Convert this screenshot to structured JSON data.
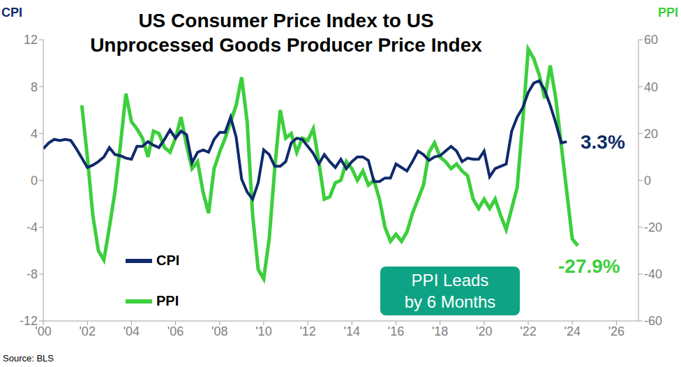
{
  "chart_data": {
    "type": "line",
    "title": "US Consumer Price Index to US\nUnprocessed Goods Producer Price Index",
    "y_label": "CPI",
    "y2_label": "PPI",
    "annotations": [
      "3.3%",
      "-27.9%",
      "PPI Leads\nby 6 Months",
      "Source: BLS"
    ],
    "x": [
      2000,
      2000.25,
      2000.5,
      2000.75,
      2001,
      2001.25,
      2001.5,
      2001.75,
      2002,
      2002.25,
      2002.5,
      2002.75,
      2003,
      2003.25,
      2003.5,
      2003.75,
      2004,
      2004.25,
      2004.5,
      2004.75,
      2005,
      2005.25,
      2005.5,
      2005.75,
      2006,
      2006.25,
      2006.5,
      2006.75,
      2007,
      2007.25,
      2007.5,
      2007.75,
      2008,
      2008.25,
      2008.5,
      2008.75,
      2009,
      2009.25,
      2009.5,
      2009.75,
      2010,
      2010.25,
      2010.5,
      2010.75,
      2011,
      2011.25,
      2011.5,
      2011.75,
      2012,
      2012.25,
      2012.5,
      2012.75,
      2013,
      2013.25,
      2013.5,
      2013.75,
      2014,
      2014.25,
      2014.5,
      2014.75,
      2015,
      2015.25,
      2015.5,
      2015.75,
      2016,
      2016.25,
      2016.5,
      2016.75,
      2017,
      2017.25,
      2017.5,
      2017.75,
      2018,
      2018.25,
      2018.5,
      2018.75,
      2019,
      2019.25,
      2019.5,
      2019.75,
      2020,
      2020.25,
      2020.5,
      2020.75,
      2021,
      2021.25,
      2021.5,
      2021.75,
      2022,
      2022.25,
      2022.5,
      2022.75,
      2023,
      2023.25,
      2023.5,
      2023.75,
      2024,
      2024.25
    ],
    "series": [
      {
        "name": "PPI",
        "color": "#3ccf3c",
        "axis": "y2",
        "values": [
          null,
          null,
          null,
          null,
          null,
          null,
          null,
          32,
          10,
          -15,
          -30,
          -34,
          -20,
          -5,
          15,
          37,
          25,
          22,
          18,
          10,
          21,
          20,
          14,
          12,
          18,
          27,
          15,
          5,
          8,
          -5,
          -14,
          5,
          12,
          18,
          25,
          32,
          44,
          25,
          -15,
          -38,
          -42,
          -25,
          5,
          30,
          18,
          20,
          12,
          18,
          17,
          22,
          8,
          -8,
          -7,
          -1,
          0,
          8,
          5,
          0,
          4,
          -2,
          0,
          -8,
          -20,
          -26,
          -23,
          -26,
          -22,
          -14,
          -8,
          -2,
          12,
          16,
          10,
          8,
          5,
          7,
          4,
          2,
          -8,
          -12,
          -8,
          -12,
          -8,
          -15,
          -21,
          -12,
          -3,
          25,
          56,
          52,
          45,
          35,
          49,
          35,
          15,
          -5,
          -25,
          -27.9
        ]
      },
      {
        "name": "CPI",
        "color": "#0f2a6b",
        "values": [
          2.7,
          3.2,
          3.5,
          3.4,
          3.5,
          3.4,
          2.7,
          1.9,
          1.1,
          1.3,
          1.6,
          2.0,
          2.8,
          2.2,
          2.1,
          1.9,
          1.8,
          2.9,
          2.9,
          3.3,
          3.0,
          2.8,
          3.5,
          4.3,
          3.6,
          4.2,
          3.9,
          1.5,
          2.4,
          2.6,
          2.4,
          3.5,
          4.1,
          4.1,
          5.4,
          3.7,
          0.1,
          -1.0,
          -1.6,
          -0.2,
          2.6,
          2.2,
          1.2,
          1.2,
          1.6,
          3.2,
          3.6,
          3.5,
          2.9,
          2.3,
          1.4,
          2.2,
          1.6,
          1.1,
          1.8,
          1.0,
          1.6,
          2.0,
          2.0,
          1.7,
          -0.1,
          -0.1,
          0.2,
          0.2,
          1.4,
          1.1,
          0.8,
          1.6,
          2.5,
          2.2,
          1.7,
          2.0,
          2.1,
          2.5,
          2.9,
          2.5,
          1.6,
          1.9,
          1.8,
          1.8,
          2.5,
          0.3,
          1.0,
          1.2,
          1.4,
          4.2,
          5.4,
          6.2,
          7.5,
          8.3,
          8.5,
          7.7,
          6.4,
          4.9,
          3.2,
          3.3,
          null,
          null
        ]
      }
    ],
    "xlim": [
      2000,
      2027
    ],
    "xticks": [
      {
        "value": 2000,
        "label": "'00"
      },
      {
        "value": 2002,
        "label": "'02"
      },
      {
        "value": 2004,
        "label": "'04"
      },
      {
        "value": 2006,
        "label": "'06"
      },
      {
        "value": 2008,
        "label": "'08"
      },
      {
        "value": 2010,
        "label": "'10"
      },
      {
        "value": 2012,
        "label": "'12"
      },
      {
        "value": 2014,
        "label": "'14"
      },
      {
        "value": 2016,
        "label": "'16"
      },
      {
        "value": 2018,
        "label": "'18"
      },
      {
        "value": 2020,
        "label": "'20"
      },
      {
        "value": 2022,
        "label": "'22"
      },
      {
        "value": 2024,
        "label": "'24"
      },
      {
        "value": 2026,
        "label": "'26"
      }
    ],
    "ylim": [
      -12,
      12
    ],
    "yticks": [
      -12,
      -8,
      -4,
      0,
      4,
      8,
      12
    ],
    "y2lim": [
      -60,
      60
    ],
    "y2ticks": [
      -60,
      -40,
      -20,
      0,
      20,
      40,
      60
    ],
    "grid": false,
    "legend": "bottom-left"
  }
}
